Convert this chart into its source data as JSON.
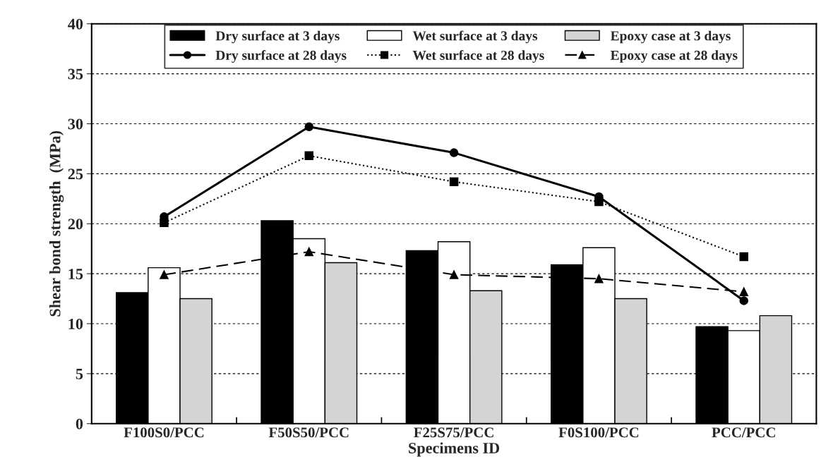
{
  "chart_data": {
    "type": "bar",
    "xlabel": "Specimens ID",
    "ylabel": "Shear bond strength  (MPa)",
    "categories": [
      "F100S0/PCC",
      "F50S50/PCC",
      "F25S75/PCC",
      "F0S100/PCC",
      "PCC/PCC"
    ],
    "series": [
      {
        "name": "Dry surface at 3 days",
        "color": "#000000",
        "values": [
          13.1,
          20.3,
          17.3,
          15.9,
          9.7
        ]
      },
      {
        "name": "Wet surface at 3 days",
        "color": "#ffffff",
        "values": [
          15.6,
          18.5,
          18.2,
          17.6,
          9.3
        ]
      },
      {
        "name": "Epoxy case at 3 days",
        "color": "#d4d4d4",
        "values": [
          12.5,
          16.1,
          13.3,
          12.5,
          10.8
        ]
      },
      {
        "name": "Dry surface at 28 days",
        "type": "line",
        "color": "#000000",
        "marker": "circle",
        "line_style": "solid",
        "values": [
          20.7,
          29.7,
          27.1,
          22.7,
          12.3
        ]
      },
      {
        "name": "Wet surface at 28 days",
        "type": "line",
        "color": "#000000",
        "marker": "square",
        "line_style": "dotted",
        "values": [
          20.1,
          26.8,
          24.2,
          22.2,
          16.7
        ]
      },
      {
        "name": "Epoxy case at 28 days",
        "type": "line",
        "color": "#000000",
        "marker": "triangle",
        "line_style": "dashed",
        "values": [
          14.9,
          17.2,
          14.9,
          14.5,
          13.2
        ]
      }
    ],
    "ylim": [
      0,
      40
    ],
    "yticks": [
      0,
      5,
      10,
      15,
      20,
      25,
      30,
      35,
      40
    ],
    "grid": "y",
    "legend": "top"
  }
}
